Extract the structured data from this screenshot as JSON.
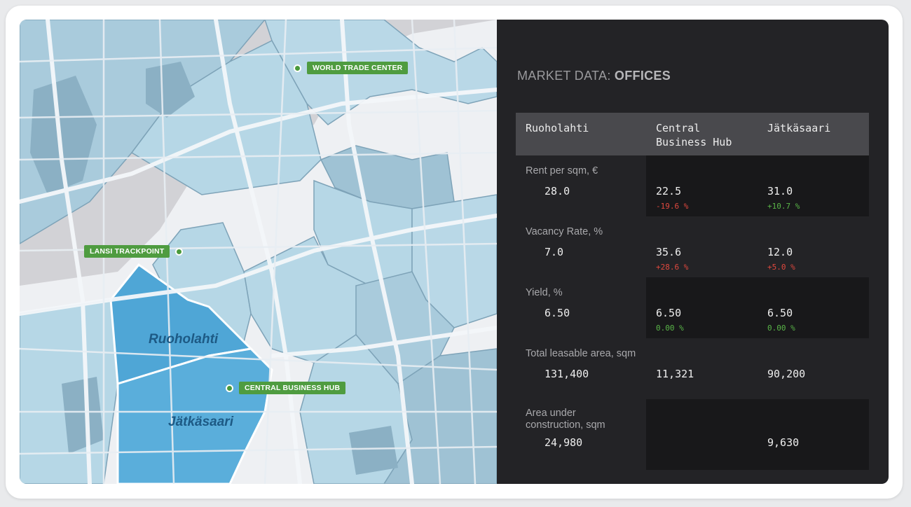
{
  "map": {
    "pins": [
      {
        "label": "WORLD TRADE CENTER"
      },
      {
        "label": "LANSI TRACKPOINT"
      },
      {
        "label": "CENTRAL BUSINESS HUB"
      }
    ],
    "areas": [
      "Ruoholahti",
      "Jätkäsaari"
    ],
    "colors": {
      "water": "#d4d4d8",
      "district": "#b6d7e6",
      "district_dark": "#8fb4c8",
      "selected": "#5aaedb",
      "road": "#f4f6f8",
      "pin": "#4f9c40"
    }
  },
  "panel": {
    "title_prefix": "MARKET DATA: ",
    "title_emphasis": "OFFICES",
    "columns": [
      "Ruoholahti",
      "Central\nBusiness Hub",
      "Jätkäsaari"
    ],
    "rows": [
      {
        "label": "Rent per sqm, €",
        "values": [
          "28.0",
          "22.5",
          "31.0"
        ],
        "deltas": [
          "",
          "-19.6 %",
          "+10.7 %"
        ],
        "delta_types": [
          "",
          "neg",
          "pos"
        ]
      },
      {
        "label": "Vacancy Rate, %",
        "values": [
          "7.0",
          "35.6",
          "12.0"
        ],
        "deltas": [
          "",
          "+28.6 %",
          "+5.0 %"
        ],
        "delta_types": [
          "",
          "neg",
          "neg"
        ]
      },
      {
        "label": "Yield, %",
        "values": [
          "6.50",
          "6.50",
          "6.50"
        ],
        "deltas": [
          "",
          "0.00 %",
          "0.00 %"
        ],
        "delta_types": [
          "",
          "pos",
          "pos"
        ]
      },
      {
        "label": "Total leasable area, sqm",
        "values": [
          "131,400",
          "11,321",
          "90,200"
        ],
        "deltas": [
          "",
          "",
          ""
        ],
        "delta_types": [
          "",
          "",
          ""
        ]
      },
      {
        "label": "Area under\nconstruction, sqm",
        "values": [
          "24,980",
          "",
          "9,630"
        ],
        "deltas": [
          "",
          "",
          ""
        ],
        "delta_types": [
          "",
          "",
          ""
        ]
      }
    ]
  }
}
